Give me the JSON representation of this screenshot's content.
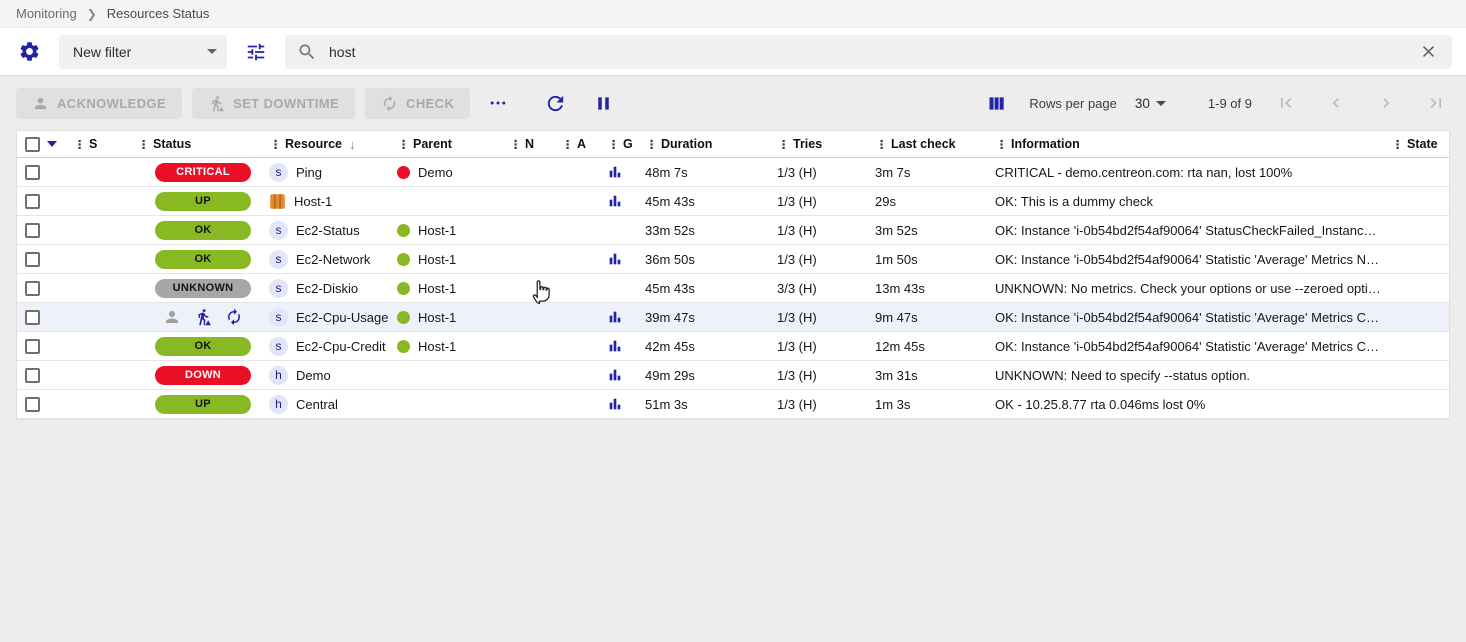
{
  "breadcrumb": {
    "items": [
      "Monitoring",
      "Resources Status"
    ]
  },
  "filter": {
    "preset_label": "New filter",
    "search_value": "host"
  },
  "toolbar": {
    "acknowledge_label": "ACKNOWLEDGE",
    "set_downtime_label": "SET DOWNTIME",
    "check_label": "CHECK"
  },
  "pagination": {
    "rows_per_page_label": "Rows per page",
    "rows_per_page_value": "30",
    "range_label": "1-9 of 9"
  },
  "table": {
    "columns": [
      {
        "id": "select",
        "label": ""
      },
      {
        "id": "expand",
        "label": ""
      },
      {
        "id": "severity",
        "label": "S"
      },
      {
        "id": "status",
        "label": "Status"
      },
      {
        "id": "resource",
        "label": "Resource",
        "sorted": "desc"
      },
      {
        "id": "parent",
        "label": "Parent"
      },
      {
        "id": "notes",
        "label": "N"
      },
      {
        "id": "action",
        "label": "A"
      },
      {
        "id": "graph",
        "label": "G"
      },
      {
        "id": "duration",
        "label": "Duration"
      },
      {
        "id": "tries",
        "label": "Tries"
      },
      {
        "id": "last_check",
        "label": "Last check"
      },
      {
        "id": "information",
        "label": "Information"
      },
      {
        "id": "state",
        "label": "State"
      }
    ],
    "rows": [
      {
        "status": {
          "label": "CRITICAL",
          "severity": "critical"
        },
        "resource": {
          "icon": "service",
          "name": "Ping"
        },
        "parent": {
          "severity": "critical",
          "name": "Demo"
        },
        "graph": true,
        "duration": "48m 7s",
        "tries": "1/3 (H)",
        "last_check": "3m 7s",
        "information": "CRITICAL - demo.centreon.com: rta nan, lost 100%",
        "hovered": false
      },
      {
        "status": {
          "label": "UP",
          "severity": "ok"
        },
        "resource": {
          "icon": "aws",
          "name": "Host-1"
        },
        "parent": null,
        "graph": true,
        "duration": "45m 43s",
        "tries": "1/3 (H)",
        "last_check": "29s",
        "information": "OK: This is a dummy check",
        "hovered": false
      },
      {
        "status": {
          "label": "OK",
          "severity": "ok"
        },
        "resource": {
          "icon": "service",
          "name": "Ec2-Status"
        },
        "parent": {
          "severity": "ok",
          "name": "Host-1"
        },
        "graph": false,
        "duration": "33m 52s",
        "tries": "1/3 (H)",
        "last_check": "3m 52s",
        "information": "OK: Instance 'i-0b54bd2f54af90064' StatusCheckFailed_Instanc…",
        "hovered": false
      },
      {
        "status": {
          "label": "OK",
          "severity": "ok"
        },
        "resource": {
          "icon": "service",
          "name": "Ec2-Network"
        },
        "parent": {
          "severity": "ok",
          "name": "Host-1"
        },
        "graph": true,
        "duration": "36m 50s",
        "tries": "1/3 (H)",
        "last_check": "1m 50s",
        "information": "OK: Instance 'i-0b54bd2f54af90064' Statistic 'Average' Metrics N…",
        "hovered": false
      },
      {
        "status": {
          "label": "UNKNOWN",
          "severity": "unknown"
        },
        "resource": {
          "icon": "service",
          "name": "Ec2-Diskio"
        },
        "parent": {
          "severity": "ok",
          "name": "Host-1"
        },
        "graph": false,
        "duration": "45m 43s",
        "tries": "3/3 (H)",
        "last_check": "13m 43s",
        "information": "UNKNOWN: No metrics. Check your options or use --zeroed opti…",
        "hovered": false
      },
      {
        "status": null,
        "actions": [
          "acknowledge",
          "set-downtime",
          "check"
        ],
        "resource": {
          "icon": "service",
          "name": "Ec2-Cpu-Usage"
        },
        "parent": {
          "severity": "ok",
          "name": "Host-1"
        },
        "graph": true,
        "duration": "39m 47s",
        "tries": "1/3 (H)",
        "last_check": "9m 47s",
        "information": "OK: Instance 'i-0b54bd2f54af90064' Statistic 'Average' Metrics C…",
        "hovered": true
      },
      {
        "status": {
          "label": "OK",
          "severity": "ok"
        },
        "resource": {
          "icon": "service",
          "name": "Ec2-Cpu-Credit"
        },
        "parent": {
          "severity": "ok",
          "name": "Host-1"
        },
        "graph": true,
        "duration": "42m 45s",
        "tries": "1/3 (H)",
        "last_check": "12m 45s",
        "information": "OK: Instance 'i-0b54bd2f54af90064' Statistic 'Average' Metrics C…",
        "hovered": false
      },
      {
        "status": {
          "label": "DOWN",
          "severity": "critical"
        },
        "resource": {
          "icon": "host",
          "name": "Demo"
        },
        "parent": null,
        "graph": true,
        "duration": "49m 29s",
        "tries": "1/3 (H)",
        "last_check": "3m 31s",
        "information": "UNKNOWN: Need to specify --status option.",
        "hovered": false
      },
      {
        "status": {
          "label": "UP",
          "severity": "ok"
        },
        "resource": {
          "icon": "host",
          "name": "Central"
        },
        "parent": null,
        "graph": true,
        "duration": "51m 3s",
        "tries": "1/3 (H)",
        "last_check": "1m 3s",
        "information": "OK - 10.25.8.77 rta 0.046ms lost 0%",
        "hovered": false
      }
    ]
  },
  "colors": {
    "primary": "#2323a5",
    "critical": "#eb0e27",
    "ok": "#88b922",
    "unknown": "#a7a7a7",
    "hover_row": "#eef0fa",
    "disabled_icon": "#a9a9a9",
    "pager_disabled": "#b9b9b9"
  }
}
